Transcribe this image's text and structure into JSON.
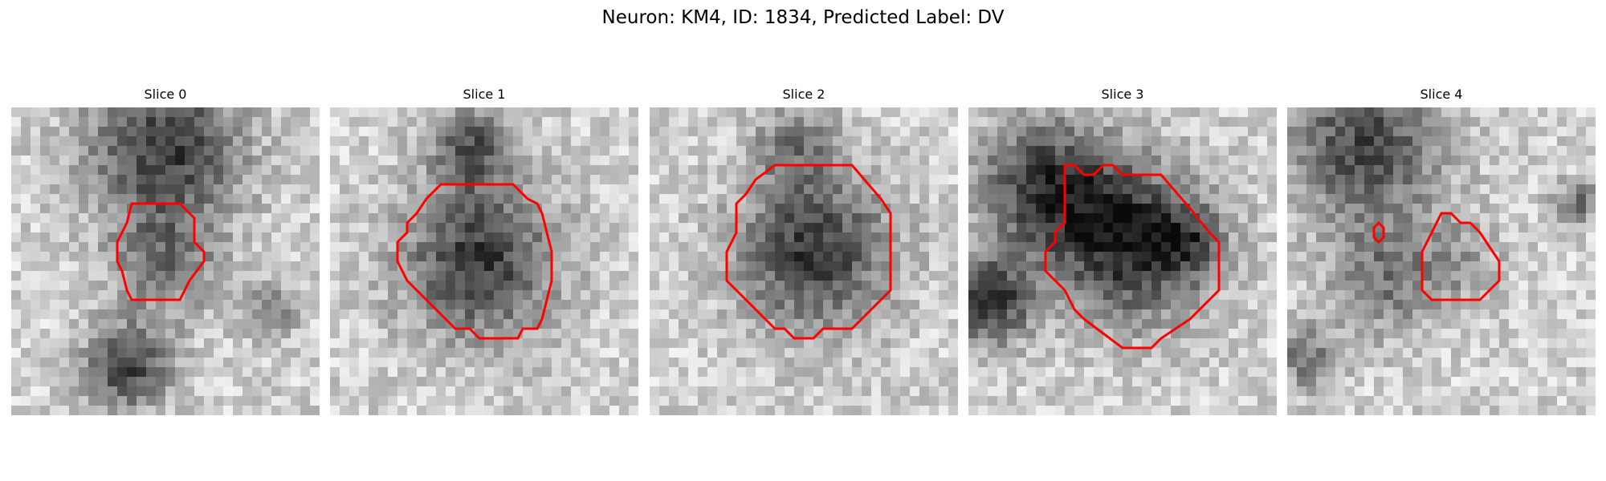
{
  "suptitle": "Neuron: KM4, ID: 1834, Predicted Label: DV",
  "outline_color": "#ff0000",
  "panels": [
    {
      "title": "Slice 0"
    },
    {
      "title": "Slice 1"
    },
    {
      "title": "Slice 2"
    },
    {
      "title": "Slice 3"
    },
    {
      "title": "Slice 4"
    }
  ]
}
